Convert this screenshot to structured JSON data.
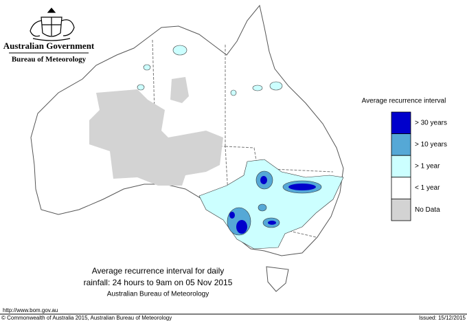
{
  "header": {
    "government": "Australian Government",
    "bureau": "Bureau of Meteorology"
  },
  "legend": {
    "title": "Average recurrence interval",
    "items": [
      {
        "label": "> 30 years",
        "color": "#0000cc"
      },
      {
        "label": "> 10 years",
        "color": "#55a8d6"
      },
      {
        "label": "> 1 year",
        "color": "#ccffff"
      },
      {
        "label": "< 1 year",
        "color": "#ffffff"
      },
      {
        "label": "No Data",
        "color": "#d3d3d3"
      }
    ]
  },
  "caption": {
    "lines": [
      "Average recurrence interval for daily",
      "rainfall: 24 hours to 9am on 05 Nov 2015",
      "Australian Bureau of Meteorology"
    ]
  },
  "footer": {
    "url": "http://www.bom.gov.au",
    "copyright": "© Commonwealth of Australia 2015, Australian Bureau of Meteorology",
    "issued": "Issued: 15/12/2015"
  }
}
